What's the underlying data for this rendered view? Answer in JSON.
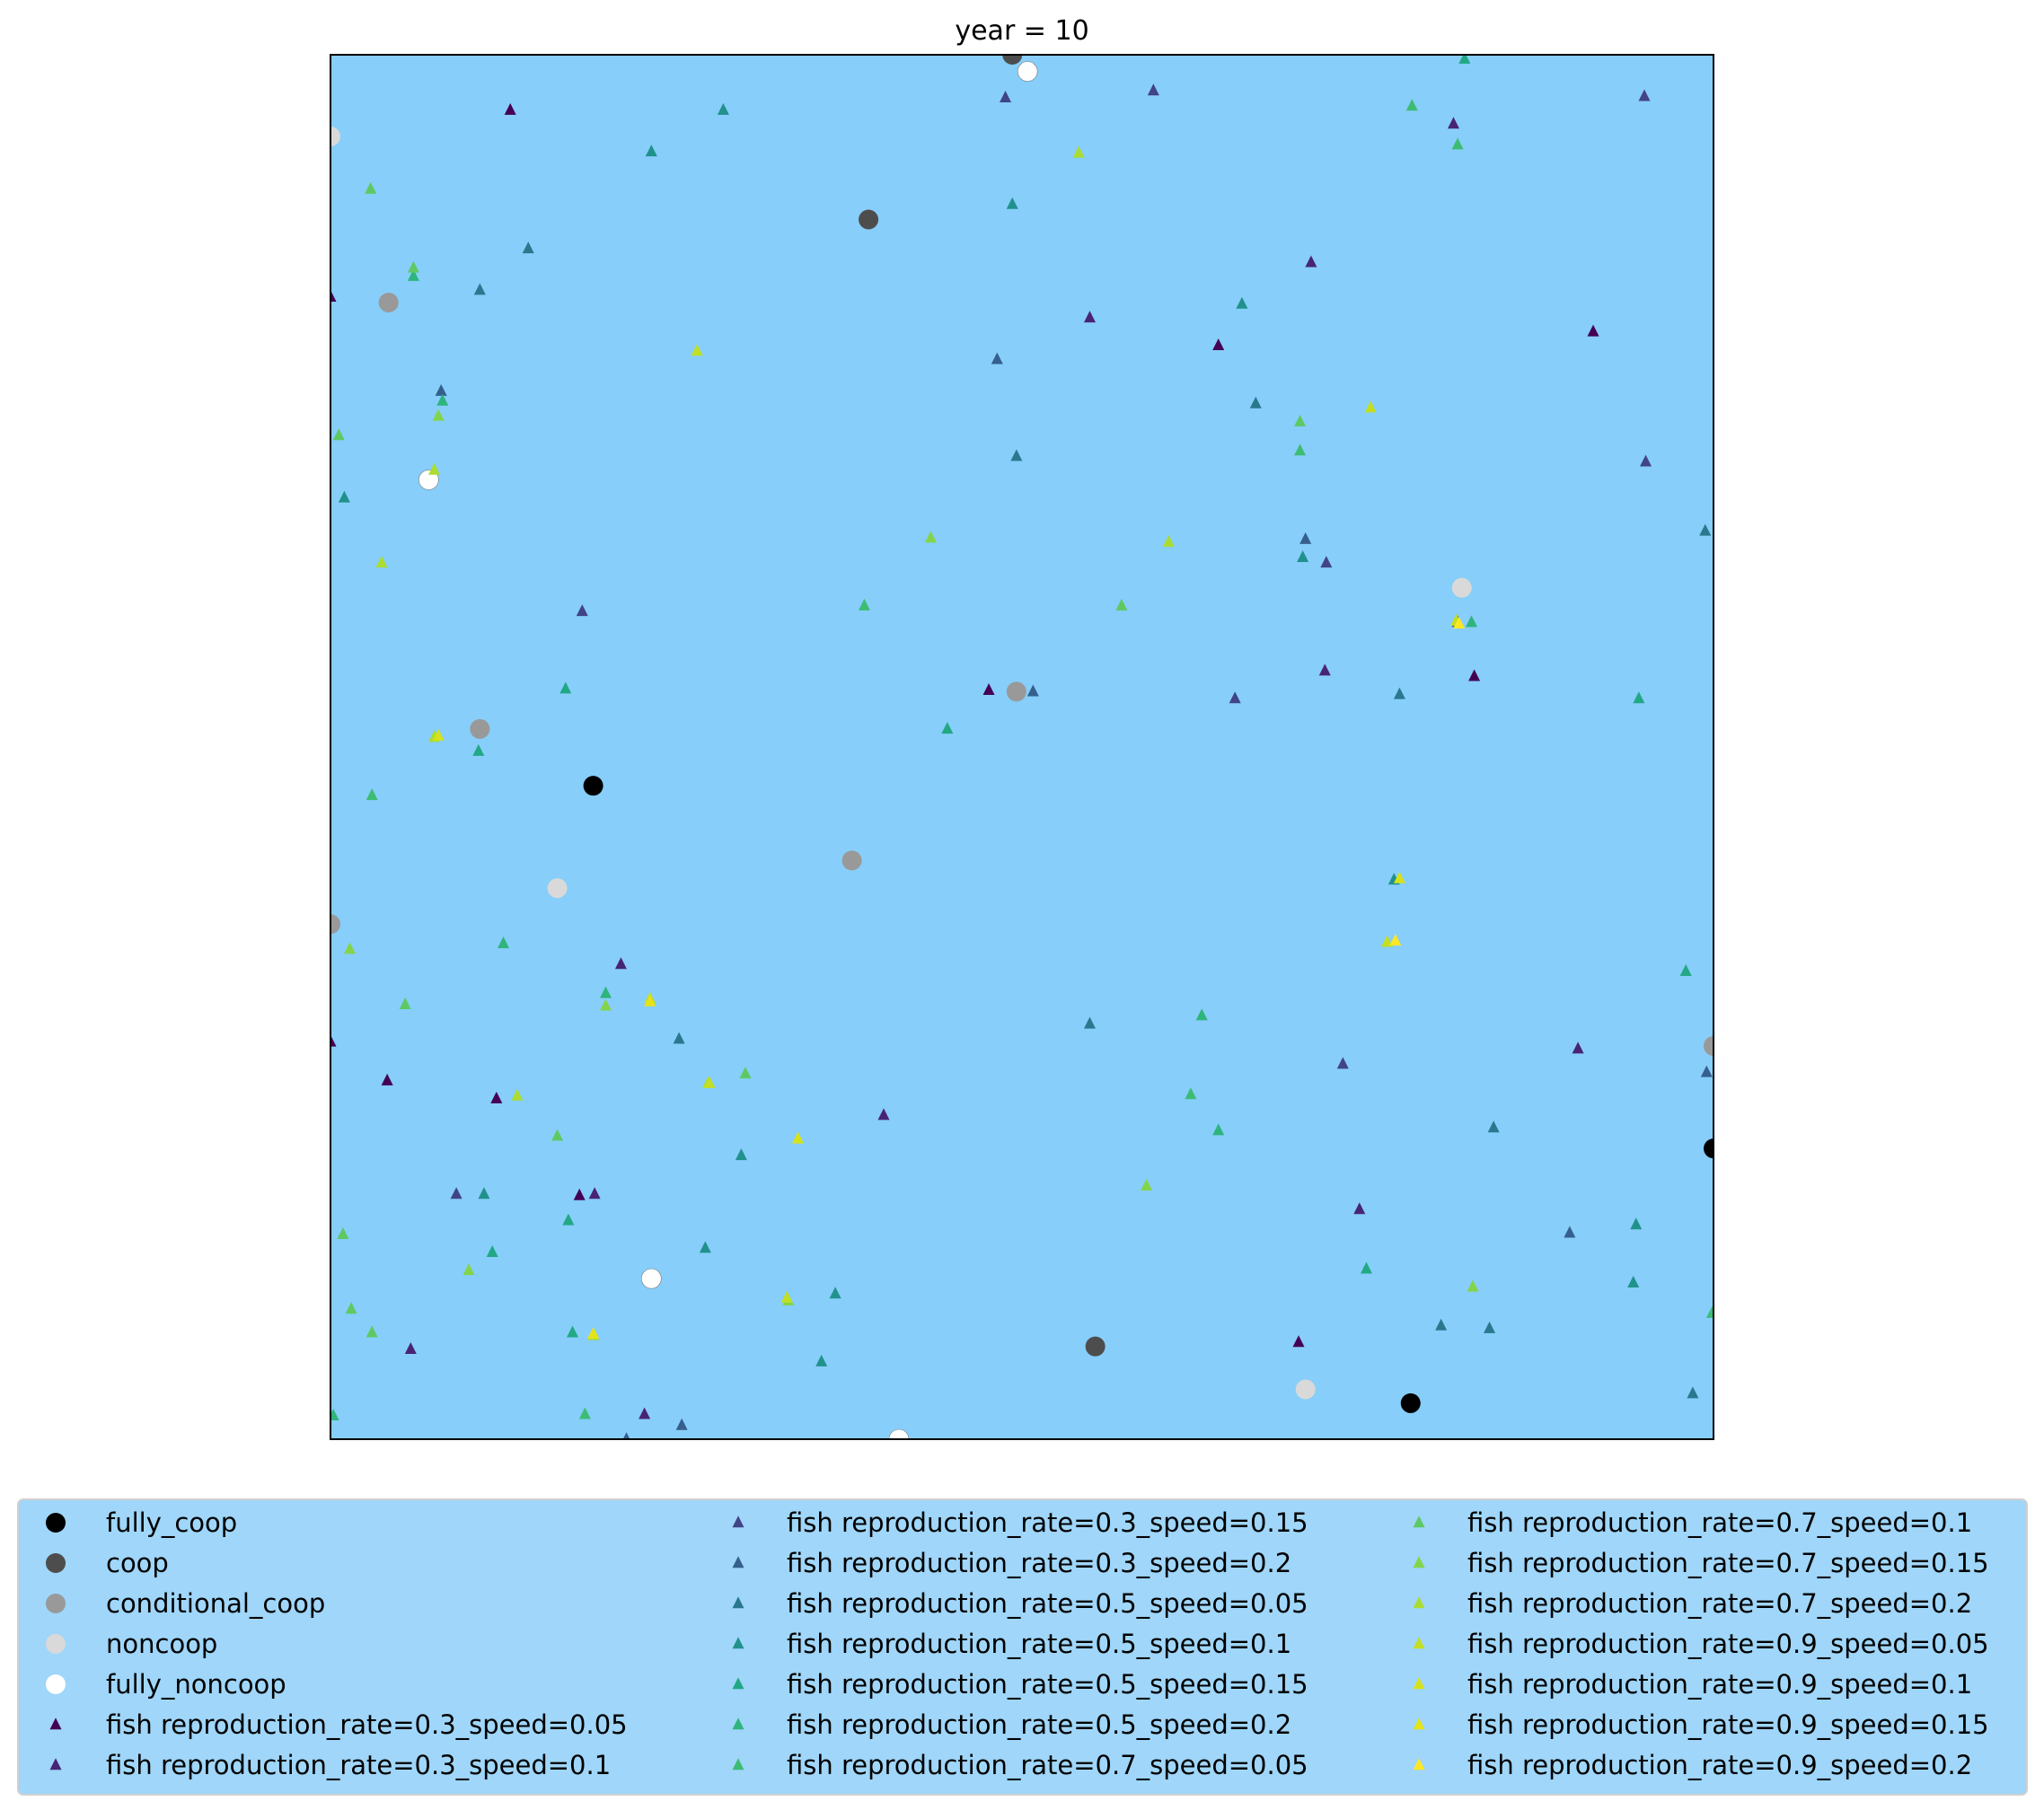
{
  "chart_data": {
    "type": "scatter",
    "title": "year = 10",
    "xlim": [
      0,
      1
    ],
    "ylim": [
      0,
      1
    ],
    "axes_visible": false,
    "grid": false,
    "background_color": "#87cefa",
    "legend_placement": "bottom",
    "legend_columns": 3,
    "series": [
      {
        "name": "fully_coop",
        "marker": "circle",
        "color": "#000000",
        "points": [
          [
            0.19,
            0.472
          ],
          [
            0.781,
            0.026
          ],
          [
            1.0,
            0.21
          ]
        ]
      },
      {
        "name": "coop",
        "marker": "circle",
        "color": "#4d4d4d",
        "points": [
          [
            0.493,
            1.0
          ],
          [
            0.389,
            0.881
          ],
          [
            0.553,
            0.067
          ]
        ]
      },
      {
        "name": "conditional_coop",
        "marker": "circle",
        "color": "#999999",
        "points": [
          [
            0.042,
            0.821
          ],
          [
            0.108,
            0.513
          ],
          [
            0.496,
            0.54
          ],
          [
            0.377,
            0.418
          ],
          [
            0.0,
            0.372
          ],
          [
            1.0,
            0.284
          ]
        ]
      },
      {
        "name": "noncoop",
        "marker": "circle",
        "color": "#d9d9d9",
        "points": [
          [
            0.0,
            0.941
          ],
          [
            0.818,
            0.615
          ],
          [
            0.164,
            0.398
          ],
          [
            0.705,
            0.036
          ]
        ]
      },
      {
        "name": "fully_noncoop",
        "marker": "circle",
        "color": "#ffffff",
        "points": [
          [
            0.504,
            0.988
          ],
          [
            0.071,
            0.693
          ],
          [
            0.232,
            0.116
          ],
          [
            0.411,
            0.0
          ]
        ]
      },
      {
        "name": "fish reproduction_rate=0.3_speed=0.05",
        "marker": "triangle",
        "color": "#440154",
        "points": [
          [
            0.13,
            0.96
          ],
          [
            0.0,
            0.825
          ],
          [
            0.642,
            0.79
          ],
          [
            0.913,
            0.8
          ],
          [
            0.476,
            0.541
          ],
          [
            0.827,
            0.551
          ],
          [
            0.0,
            0.287
          ],
          [
            0.041,
            0.259
          ],
          [
            0.12,
            0.246
          ],
          [
            0.18,
            0.176
          ],
          [
            0.7,
            0.07
          ]
        ]
      },
      {
        "name": "fish reproduction_rate=0.3_speed=0.1",
        "marker": "triangle",
        "color": "#482475",
        "points": [
          [
            0.549,
            0.81
          ],
          [
            0.709,
            0.85
          ],
          [
            0.812,
            0.95
          ],
          [
            0.4,
            0.234
          ],
          [
            0.191,
            0.177
          ],
          [
            0.21,
            0.343
          ],
          [
            0.744,
            0.166
          ],
          [
            0.058,
            0.065
          ],
          [
            0.227,
            0.018
          ],
          [
            0.902,
            0.282
          ],
          [
            0.719,
            0.555
          ]
        ]
      },
      {
        "name": "fish reproduction_rate=0.3_speed=0.15",
        "marker": "triangle",
        "color": "#414487",
        "points": [
          [
            0.488,
            0.969
          ],
          [
            0.595,
            0.974
          ],
          [
            0.95,
            0.97
          ],
          [
            0.182,
            0.598
          ],
          [
            0.72,
            0.633
          ],
          [
            0.654,
            0.535
          ],
          [
            0.091,
            0.177
          ],
          [
            0.951,
            0.706
          ],
          [
            0.732,
            0.271
          ]
        ]
      },
      {
        "name": "fish reproduction_rate=0.3_speed=0.2",
        "marker": "triangle",
        "color": "#355f8d",
        "points": [
          [
            0.08,
            0.757
          ],
          [
            0.482,
            0.78
          ],
          [
            0.705,
            0.65
          ],
          [
            0.815,
            0.59
          ],
          [
            0.508,
            0.54
          ],
          [
            0.896,
            0.149
          ],
          [
            0.995,
            0.265
          ],
          [
            0.214,
            0.0
          ],
          [
            0.254,
            0.01
          ]
        ]
      },
      {
        "name": "fish reproduction_rate=0.5_speed=0.05",
        "marker": "triangle",
        "color": "#2a788e",
        "points": [
          [
            0.143,
            0.86
          ],
          [
            0.496,
            0.71
          ],
          [
            0.669,
            0.748
          ],
          [
            0.773,
            0.538
          ],
          [
            0.994,
            0.656
          ],
          [
            0.252,
            0.289
          ],
          [
            0.549,
            0.3
          ],
          [
            0.841,
            0.225
          ],
          [
            0.803,
            0.082
          ],
          [
            0.838,
            0.08
          ],
          [
            0.108,
            0.83
          ],
          [
            0.985,
            0.033
          ]
        ]
      },
      {
        "name": "fish reproduction_rate=0.5_speed=0.1",
        "marker": "triangle",
        "color": "#21918c",
        "points": [
          [
            0.284,
            0.96
          ],
          [
            0.232,
            0.93
          ],
          [
            0.493,
            0.892
          ],
          [
            0.659,
            0.82
          ],
          [
            0.01,
            0.68
          ],
          [
            0.703,
            0.637
          ],
          [
            0.769,
            0.404
          ],
          [
            0.111,
            0.177
          ],
          [
            0.297,
            0.205
          ],
          [
            0.365,
            0.105
          ],
          [
            0.944,
            0.155
          ],
          [
            0.271,
            0.138
          ],
          [
            0.355,
            0.056
          ],
          [
            0.942,
            0.113
          ]
        ]
      },
      {
        "name": "fish reproduction_rate=0.5_speed=0.15",
        "marker": "triangle",
        "color": "#22a884",
        "points": [
          [
            0.82,
            0.997
          ],
          [
            0.17,
            0.542
          ],
          [
            0.446,
            0.513
          ],
          [
            0.946,
            0.535
          ],
          [
            0.107,
            0.497
          ],
          [
            0.117,
            0.135
          ],
          [
            0.749,
            0.123
          ],
          [
            0.172,
            0.158
          ],
          [
            0.98,
            0.338
          ],
          [
            0.175,
            0.077
          ]
        ]
      },
      {
        "name": "fish reproduction_rate=0.5_speed=0.2",
        "marker": "triangle",
        "color": "#2fb47c",
        "points": [
          [
            0.081,
            0.75
          ],
          [
            0.06,
            0.84
          ],
          [
            0.825,
            0.59
          ],
          [
            0.125,
            0.358
          ],
          [
            0.199,
            0.322
          ],
          [
            0.63,
            0.306
          ],
          [
            0.642,
            0.223
          ],
          [
            0.002,
            0.017
          ]
        ]
      },
      {
        "name": "fish reproduction_rate=0.7_speed=0.05",
        "marker": "triangle",
        "color": "#3dbc74",
        "points": [
          [
            0.782,
            0.963
          ],
          [
            0.815,
            0.935
          ],
          [
            0.386,
            0.602
          ],
          [
            0.701,
            0.714
          ],
          [
            0.03,
            0.465
          ],
          [
            0.184,
            0.018
          ],
          [
            0.999,
            0.091
          ],
          [
            0.622,
            0.249
          ]
        ]
      },
      {
        "name": "fish reproduction_rate=0.7_speed=0.1",
        "marker": "triangle",
        "color": "#5ec962",
        "points": [
          [
            0.029,
            0.903
          ],
          [
            0.06,
            0.846
          ],
          [
            0.006,
            0.725
          ],
          [
            0.701,
            0.735
          ],
          [
            0.572,
            0.602
          ],
          [
            0.054,
            0.314
          ],
          [
            0.164,
            0.219
          ],
          [
            0.009,
            0.148
          ],
          [
            0.3,
            0.264
          ],
          [
            0.015,
            0.094
          ],
          [
            0.03,
            0.077
          ]
        ]
      },
      {
        "name": "fish reproduction_rate=0.7_speed=0.15",
        "marker": "triangle",
        "color": "#84d44b",
        "points": [
          [
            0.434,
            0.651
          ],
          [
            0.826,
            0.11
          ],
          [
            0.199,
            0.313
          ],
          [
            0.014,
            0.354
          ],
          [
            0.078,
            0.739
          ],
          [
            0.331,
            0.1
          ],
          [
            0.1,
            0.122
          ],
          [
            0.59,
            0.183
          ]
        ]
      },
      {
        "name": "fish reproduction_rate=0.7_speed=0.2",
        "marker": "triangle",
        "color": "#aadc32",
        "points": [
          [
            0.541,
            0.929
          ],
          [
            0.606,
            0.648
          ],
          [
            0.037,
            0.633
          ],
          [
            0.075,
            0.507
          ],
          [
            0.135,
            0.248
          ],
          [
            0.273,
            0.257
          ],
          [
            0.19,
            0.075
          ],
          [
            0.075,
            0.7
          ]
        ]
      },
      {
        "name": "fish reproduction_rate=0.9_speed=0.05",
        "marker": "triangle",
        "color": "#c2df23",
        "points": [
          [
            0.265,
            0.786
          ],
          [
            0.752,
            0.745
          ],
          [
            0.814,
            0.591
          ],
          [
            0.764,
            0.359
          ],
          [
            0.231,
            0.318
          ],
          [
            0.274,
            0.257
          ],
          [
            0.33,
            0.102
          ]
        ]
      },
      {
        "name": "fish reproduction_rate=0.9_speed=0.1",
        "marker": "triangle",
        "color": "#d6e21a",
        "points": [
          [
            0.078,
            0.508
          ],
          [
            0.338,
            0.217
          ],
          [
            0.773,
            0.405
          ]
        ]
      },
      {
        "name": "fish reproduction_rate=0.9_speed=0.15",
        "marker": "triangle",
        "color": "#e5e419",
        "points": [
          [
            0.231,
            0.316
          ],
          [
            0.19,
            0.076
          ]
        ]
      },
      {
        "name": "fish reproduction_rate=0.9_speed=0.2",
        "marker": "triangle",
        "color": "#fde725",
        "points": [
          [
            0.816,
            0.589
          ],
          [
            0.77,
            0.36
          ]
        ]
      }
    ]
  }
}
